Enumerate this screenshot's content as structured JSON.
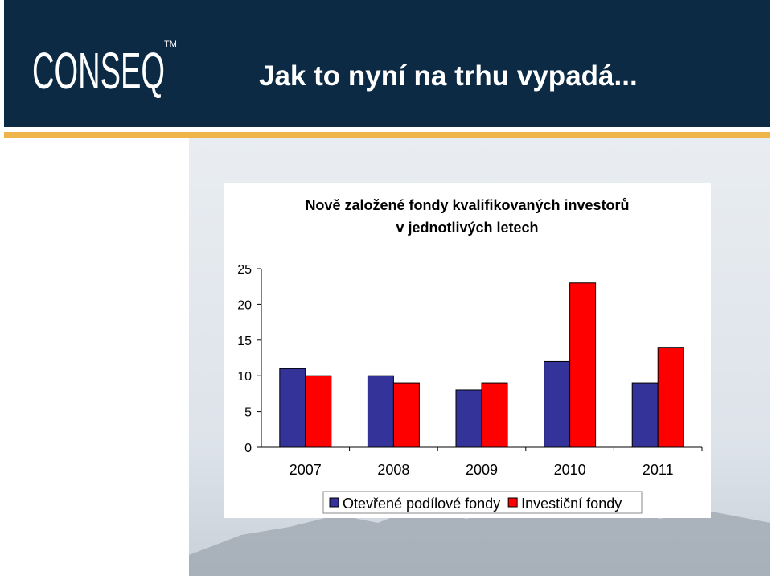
{
  "header": {
    "logo": "CONSEQ",
    "logo_mark": "TM",
    "title": "Jak to nyní na trhu vypadá..."
  },
  "chart_data": {
    "type": "bar",
    "title": [
      "Nově založené fondy kvalifikovaných investorů",
      "v jednotlivých letech"
    ],
    "categories": [
      "2007",
      "2008",
      "2009",
      "2010",
      "2011"
    ],
    "series": [
      {
        "name": "Otevřené podílové fondy",
        "color": "#333399",
        "values": [
          11,
          10,
          8,
          12,
          9
        ]
      },
      {
        "name": "Investiční fondy",
        "color": "#ff0000",
        "values": [
          10,
          9,
          9,
          23,
          14
        ]
      }
    ],
    "ylim": [
      0,
      25
    ],
    "yticks": [
      0,
      5,
      10,
      15,
      20,
      25
    ],
    "grid": false,
    "legend": "bottom"
  }
}
